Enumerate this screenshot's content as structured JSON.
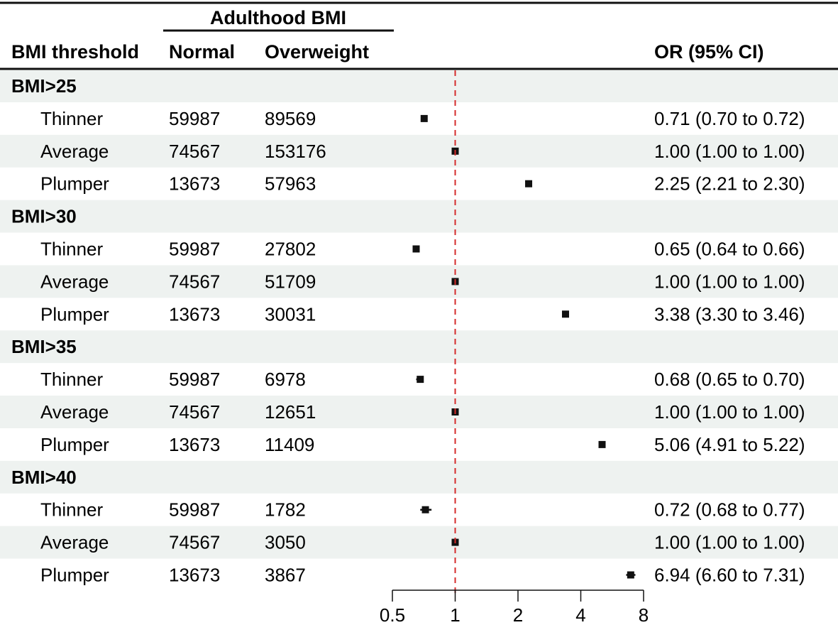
{
  "chart_data": {
    "type": "forest",
    "header": {
      "col_threshold": "BMI threshold",
      "span_label": "Adulthood BMI",
      "col_normal": "Normal",
      "col_overweight": "Overweight",
      "col_or": "OR (95% CI)"
    },
    "x_scale": "log2",
    "xlim": [
      0.5,
      8
    ],
    "x_ticks": [
      0.5,
      1,
      2,
      4,
      8
    ],
    "x_tick_labels": [
      "0.5",
      "1",
      "2",
      "4",
      "8"
    ],
    "reference_line": 1,
    "reference_color": "#d42b2b",
    "stripe_color": "#eef2f0",
    "groups": [
      {
        "label": "BMI>25",
        "rows": [
          {
            "label": "Thinner",
            "normal": "59987",
            "overweight": "89569",
            "or": 0.71,
            "lo": 0.7,
            "hi": 0.72,
            "ci_text": "0.71 (0.70 to 0.72)"
          },
          {
            "label": "Average",
            "normal": "74567",
            "overweight": "153176",
            "or": 1.0,
            "lo": 1.0,
            "hi": 1.0,
            "ci_text": "1.00 (1.00 to 1.00)"
          },
          {
            "label": "Plumper",
            "normal": "13673",
            "overweight": "57963",
            "or": 2.25,
            "lo": 2.21,
            "hi": 2.3,
            "ci_text": "2.25 (2.21 to 2.30)"
          }
        ]
      },
      {
        "label": "BMI>30",
        "rows": [
          {
            "label": "Thinner",
            "normal": "59987",
            "overweight": "27802",
            "or": 0.65,
            "lo": 0.64,
            "hi": 0.66,
            "ci_text": "0.65 (0.64 to 0.66)"
          },
          {
            "label": "Average",
            "normal": "74567",
            "overweight": "51709",
            "or": 1.0,
            "lo": 1.0,
            "hi": 1.0,
            "ci_text": "1.00 (1.00 to 1.00)"
          },
          {
            "label": "Plumper",
            "normal": "13673",
            "overweight": "30031",
            "or": 3.38,
            "lo": 3.3,
            "hi": 3.46,
            "ci_text": "3.38 (3.30 to 3.46)"
          }
        ]
      },
      {
        "label": "BMI>35",
        "rows": [
          {
            "label": "Thinner",
            "normal": "59987",
            "overweight": "6978",
            "or": 0.68,
            "lo": 0.65,
            "hi": 0.7,
            "ci_text": "0.68 (0.65 to 0.70)"
          },
          {
            "label": "Average",
            "normal": "74567",
            "overweight": "12651",
            "or": 1.0,
            "lo": 1.0,
            "hi": 1.0,
            "ci_text": "1.00 (1.00 to 1.00)"
          },
          {
            "label": "Plumper",
            "normal": "13673",
            "overweight": "11409",
            "or": 5.06,
            "lo": 4.91,
            "hi": 5.22,
            "ci_text": "5.06 (4.91 to 5.22)"
          }
        ]
      },
      {
        "label": "BMI>40",
        "rows": [
          {
            "label": "Thinner",
            "normal": "59987",
            "overweight": "1782",
            "or": 0.72,
            "lo": 0.68,
            "hi": 0.77,
            "ci_text": "0.72 (0.68 to 0.77)"
          },
          {
            "label": "Average",
            "normal": "74567",
            "overweight": "3050",
            "or": 1.0,
            "lo": 1.0,
            "hi": 1.0,
            "ci_text": "1.00 (1.00 to 1.00)"
          },
          {
            "label": "Plumper",
            "normal": "13673",
            "overweight": "3867",
            "or": 6.94,
            "lo": 6.6,
            "hi": 7.31,
            "ci_text": "6.94 (6.60 to 7.31)"
          }
        ]
      }
    ]
  }
}
